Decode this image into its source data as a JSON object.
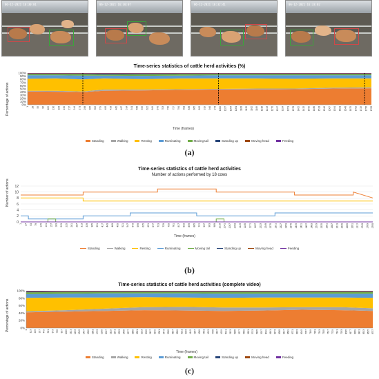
{
  "colors": {
    "Standing": "#ed7d31",
    "Walking": "#a5a5a5",
    "Resting": "#ffc000",
    "Ruminating": "#5b9bd5",
    "Moving tail": "#70ad47",
    "Standing up": "#264478",
    "Moving head": "#9e480e",
    "Feeding": "#7030a0"
  },
  "thumbnails": {
    "timestamps": [
      "06-12-2021 16:30:01",
      "06-12-2021 16:30:07",
      "06-12-2021 16:32:41",
      "06-12-2021 16:33:02"
    ]
  },
  "panel_a": {
    "caption": "(a)"
  },
  "panel_b": {
    "caption": "(b)"
  },
  "panel_c": {
    "caption": "(c)"
  },
  "chart_data": [
    {
      "type": "area",
      "stacked_percent": true,
      "title": "Time-series statistics of cattle herd activities (%)",
      "xlabel": "Time (frames)",
      "ylabel": "Percentage of actions",
      "yticks": [
        "0%",
        "10%",
        "20%",
        "30%",
        "40%",
        "50%",
        "60%",
        "70%",
        "80%",
        "90%",
        "100%"
      ],
      "xticks": [
        "1",
        "28",
        "55",
        "82",
        "109",
        "136",
        "163",
        "190",
        "217",
        "244",
        "271",
        "298",
        "325",
        "352",
        "379",
        "406",
        "433",
        "460",
        "487",
        "514",
        "541",
        "568",
        "595",
        "622",
        "649",
        "676",
        "703",
        "730",
        "757",
        "784",
        "811",
        "838",
        "865",
        "892",
        "919",
        "946",
        "973",
        "1000",
        "1027",
        "1054",
        "1081",
        "1108",
        "1135",
        "1162",
        "1189",
        "1216",
        "1243",
        "1270",
        "1297",
        "1324",
        "1351",
        "1378",
        "1405",
        "1432",
        "1459",
        "1486",
        "1513",
        "1540",
        "1567",
        "1594",
        "1621",
        "1648",
        "1675",
        "1702",
        "1729",
        "1756",
        "1783"
      ],
      "x_range": [
        1,
        1800
      ],
      "marker_frames": [
        290,
        1000,
        1765
      ],
      "legend": [
        "Standing",
        "Walking",
        "Resting",
        "Ruminating",
        "Moving tail",
        "Standing up",
        "Moving head",
        "Feeding"
      ],
      "legend_position": "bottom",
      "x": [
        1,
        150,
        290,
        400,
        600,
        800,
        1000,
        1200,
        1400,
        1600,
        1800
      ],
      "series": [
        {
          "name": "Standing",
          "values": [
            42,
            41,
            40,
            44,
            45,
            47,
            48,
            48,
            49,
            51,
            52
          ]
        },
        {
          "name": "Walking",
          "values": [
            2,
            3,
            2,
            4,
            3,
            2,
            2,
            3,
            2,
            3,
            3
          ]
        },
        {
          "name": "Resting",
          "values": [
            38,
            39,
            38,
            35,
            33,
            34,
            33,
            32,
            31,
            29,
            28
          ]
        },
        {
          "name": "Ruminating",
          "values": [
            11,
            10,
            12,
            9,
            10,
            9,
            10,
            10,
            11,
            10,
            10
          ]
        },
        {
          "name": "Moving tail",
          "values": [
            4,
            4,
            5,
            3,
            5,
            5,
            4,
            4,
            4,
            4,
            4
          ]
        },
        {
          "name": "Standing up",
          "values": [
            1,
            1,
            1,
            3,
            2,
            1,
            1,
            1,
            1,
            1,
            1
          ]
        },
        {
          "name": "Moving head",
          "values": [
            1,
            1,
            1,
            1,
            1,
            1,
            1,
            1,
            1,
            1,
            1
          ]
        },
        {
          "name": "Feeding",
          "values": [
            1,
            1,
            1,
            1,
            1,
            1,
            1,
            1,
            1,
            1,
            1
          ]
        }
      ]
    },
    {
      "type": "line",
      "title": "Time-series statistics of cattle herd activities",
      "subtitle": "Number of actions performed by 18 cows",
      "xlabel": "Time (frames)",
      "ylabel": "Number of actions",
      "ylim": [
        0,
        12
      ],
      "yticks": [
        0,
        2,
        4,
        6,
        8,
        10,
        12
      ],
      "xticks": [
        "1",
        "27",
        "53",
        "79",
        "105",
        "131",
        "157",
        "183",
        "209",
        "235",
        "261",
        "287",
        "313",
        "339",
        "365",
        "391",
        "417",
        "443",
        "469",
        "495",
        "521",
        "547",
        "573",
        "599",
        "625",
        "651",
        "677",
        "703",
        "729",
        "755",
        "781",
        "807",
        "833",
        "859",
        "885",
        "911",
        "937",
        "963",
        "989",
        "1015",
        "1041",
        "1067",
        "1093",
        "1119",
        "1145",
        "1171",
        "1197",
        "1223",
        "1249",
        "1275",
        "1301",
        "1327",
        "1353",
        "1379",
        "1405",
        "1431",
        "1457",
        "1483",
        "1509",
        "1535",
        "1561",
        "1587",
        "1613",
        "1639",
        "1665",
        "1691",
        "1717",
        "1743",
        "1769",
        "1795"
      ],
      "x_range": [
        1,
        1800
      ],
      "legend": [
        "Standing",
        "Walking",
        "Resting",
        "Ruminating",
        "Moving tail",
        "Standing up",
        "Moving head",
        "Feeding"
      ],
      "legend_position": "bottom",
      "series": [
        {
          "name": "Standing",
          "x": [
            1,
            320,
            320,
            700,
            700,
            1000,
            1000,
            1400,
            1400,
            1700,
            1700,
            1800
          ],
          "values": [
            9,
            9,
            10,
            10,
            11,
            11,
            10,
            10,
            9,
            9,
            10,
            8
          ]
        },
        {
          "name": "Walking",
          "x": [
            1,
            1800
          ],
          "values": [
            0,
            0
          ]
        },
        {
          "name": "Resting",
          "x": [
            1,
            320,
            320,
            330,
            330,
            1800
          ],
          "values": [
            8,
            8,
            7,
            7,
            7,
            7
          ]
        },
        {
          "name": "Ruminating",
          "x": [
            1,
            40,
            40,
            320,
            320,
            560,
            560,
            900,
            900,
            1300,
            1300,
            1800
          ],
          "values": [
            2,
            2,
            1,
            1,
            2,
            2,
            3,
            3,
            2,
            2,
            3,
            3
          ]
        },
        {
          "name": "Moving tail",
          "x": [
            1,
            140,
            140,
            180,
            180,
            1000,
            1000,
            1040,
            1040,
            1800
          ],
          "values": [
            0,
            0,
            1,
            1,
            0,
            0,
            1,
            1,
            0,
            0
          ]
        },
        {
          "name": "Standing up",
          "x": [
            1,
            1800
          ],
          "values": [
            0,
            0
          ]
        },
        {
          "name": "Moving head",
          "x": [
            1,
            1800
          ],
          "values": [
            0,
            0
          ]
        },
        {
          "name": "Feeding",
          "x": [
            1,
            1800
          ],
          "values": [
            0,
            0
          ]
        }
      ]
    },
    {
      "type": "area",
      "stacked_percent": true,
      "title": "Time-series statistics of cattle herd activities (complete video)",
      "xlabel": "Time (frames)",
      "ylabel": "Percentage of actions",
      "yticks": [
        "0%",
        "20%",
        "40%",
        "60%",
        "80%",
        "100%"
      ],
      "xticks": [
        "1",
        "113",
        "225",
        "337",
        "449",
        "561",
        "673",
        "785",
        "897",
        "1009",
        "1121",
        "1233",
        "1345",
        "1457",
        "1569",
        "1681",
        "1793",
        "1905",
        "2017",
        "2129",
        "2241",
        "2353",
        "2465",
        "2577",
        "2689",
        "2801",
        "2913",
        "3025",
        "3137",
        "3249",
        "3361",
        "3473",
        "3585",
        "3697",
        "3809",
        "3921",
        "4033",
        "4145",
        "4257",
        "4369",
        "4481",
        "4593",
        "4705",
        "4817",
        "4929",
        "5041",
        "5153",
        "5265",
        "5377",
        "5489",
        "5601",
        "5713",
        "5825",
        "5937",
        "6049",
        "6161",
        "6273",
        "6385",
        "6497",
        "6609",
        "6721",
        "6833",
        "6945",
        "7057",
        "7169",
        "7281",
        "7393",
        "7505",
        "7617",
        "7729",
        "7841",
        "7953",
        "8065",
        "8177",
        "8289",
        "8401",
        "8513",
        "8625",
        "8737"
      ],
      "x_range": [
        1,
        8800
      ],
      "legend": [
        "Standing",
        "Walking",
        "Resting",
        "Ruminating",
        "Moving tail",
        "Standing up",
        "Moving head",
        "Feeding"
      ],
      "legend_position": "bottom",
      "x": [
        1,
        1000,
        2000,
        3000,
        4000,
        5000,
        6000,
        7000,
        8000,
        8800
      ],
      "series": [
        {
          "name": "Standing",
          "values": [
            42,
            44,
            46,
            48,
            47,
            46,
            47,
            49,
            48,
            46
          ]
        },
        {
          "name": "Walking",
          "values": [
            3,
            4,
            6,
            8,
            10,
            9,
            8,
            7,
            8,
            7
          ]
        },
        {
          "name": "Resting",
          "values": [
            36,
            34,
            30,
            27,
            25,
            26,
            27,
            26,
            26,
            28
          ]
        },
        {
          "name": "Ruminating",
          "values": [
            10,
            10,
            11,
            10,
            11,
            11,
            10,
            10,
            10,
            11
          ]
        },
        {
          "name": "Moving tail",
          "values": [
            5,
            5,
            4,
            4,
            4,
            5,
            5,
            5,
            5,
            5
          ]
        },
        {
          "name": "Standing up",
          "values": [
            2,
            1,
            1,
            1,
            1,
            1,
            1,
            1,
            1,
            1
          ]
        },
        {
          "name": "Moving head",
          "values": [
            1,
            1,
            1,
            1,
            1,
            1,
            1,
            1,
            1,
            1
          ]
        },
        {
          "name": "Feeding",
          "values": [
            1,
            1,
            1,
            1,
            1,
            1,
            1,
            1,
            1,
            1
          ]
        }
      ]
    }
  ]
}
